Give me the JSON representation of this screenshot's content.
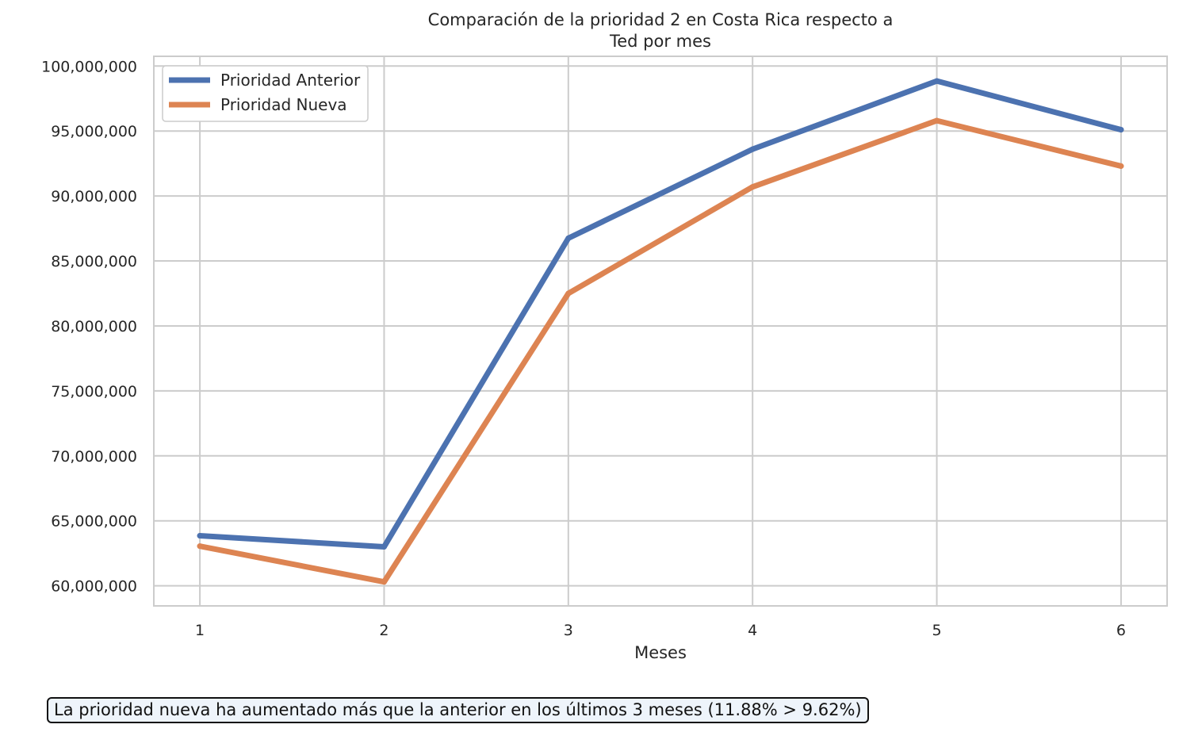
{
  "chart_data": {
    "type": "line",
    "title_lines": [
      "Comparación de la prioridad 2 en Costa Rica respecto a",
      "Ted por mes"
    ],
    "xlabel": "Meses",
    "ylabel": "",
    "x": [
      1,
      2,
      3,
      4,
      5,
      6
    ],
    "x_tick_labels": [
      "1",
      "2",
      "3",
      "4",
      "5",
      "6"
    ],
    "y_tick_values": [
      60000000,
      65000000,
      70000000,
      75000000,
      80000000,
      85000000,
      90000000,
      95000000,
      100000000
    ],
    "y_tick_labels": [
      "60,000,000",
      "65,000,000",
      "70,000,000",
      "75,000,000",
      "80,000,000",
      "85,000,000",
      "90,000,000",
      "95,000,000",
      "100,000,000"
    ],
    "xlim": [
      0.75,
      6.25
    ],
    "ylim": [
      58450000,
      100750000
    ],
    "grid": true,
    "legend_position": "top-left",
    "series": [
      {
        "name": "Prioridad Anterior",
        "color": "#4c72b0",
        "values": [
          63850000,
          63000000,
          86750000,
          93600000,
          98850000,
          95100000
        ]
      },
      {
        "name": "Prioridad Nueva",
        "color": "#dd8452",
        "values": [
          63050000,
          60300000,
          82500000,
          90700000,
          95800000,
          92300000
        ]
      }
    ]
  },
  "annotation": {
    "text": "La prioridad nueva ha aumentado más que la anterior en los últimos 3 meses (11.88% > 9.62%)"
  }
}
